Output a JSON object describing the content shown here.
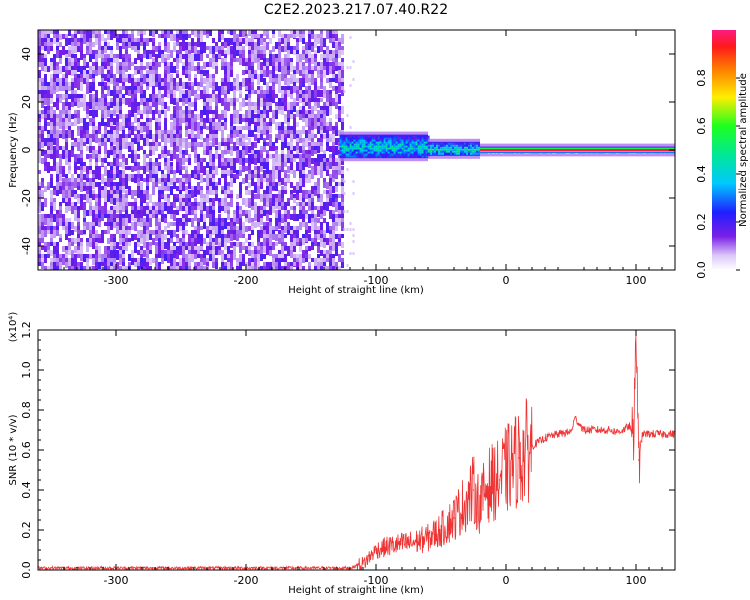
{
  "title": "C2E2.2023.217.07.40.R22",
  "chart_data": [
    {
      "type": "heatmap",
      "xlabel": "Height of straight line (km)",
      "ylabel": "Frequency (Hz)",
      "xlim": [
        -360,
        130
      ],
      "ylim": [
        -50,
        50
      ],
      "xticks": [
        -300,
        -200,
        -100,
        0,
        100
      ],
      "xtick_labels": [
        "-300",
        "-200",
        "-100",
        "0",
        "100"
      ],
      "yticks": [
        -40,
        -20,
        0,
        20,
        40
      ],
      "ytick_labels": [
        "-40",
        "-20",
        "0",
        "20",
        "40"
      ],
      "colorbar": {
        "label": "Normalized spectral amplitude",
        "range": [
          0.0,
          1.0
        ],
        "ticks": [
          0.0,
          0.2,
          0.4,
          0.6,
          0.8
        ],
        "tick_labels": [
          "0.0",
          "0.2",
          "0.4",
          "0.6",
          "0.8"
        ]
      },
      "regions": [
        {
          "x": [
            -360,
            -125
          ],
          "freq": [
            -50,
            50
          ],
          "amplitude": 0.15,
          "note": "broadband noise"
        },
        {
          "x": [
            -128,
            -60
          ],
          "freq": [
            -3,
            6
          ],
          "amplitude": 0.45
        },
        {
          "x": [
            -60,
            -20
          ],
          "freq": [
            -2,
            3
          ],
          "amplitude": 0.5
        },
        {
          "x": [
            -20,
            130
          ],
          "freq": [
            -1,
            1
          ],
          "amplitude": 0.95
        }
      ],
      "grid": false
    },
    {
      "type": "line",
      "xlabel": "Height of straight line (km)",
      "ylabel": "SNR (10 * v/v)",
      "y_multiplier": "(x10⁴)",
      "xlim": [
        -360,
        130
      ],
      "ylim": [
        0.0,
        1.2
      ],
      "xticks": [
        -300,
        -200,
        -100,
        0,
        100
      ],
      "xtick_labels": [
        "-300",
        "-200",
        "-100",
        "0",
        "100"
      ],
      "yticks": [
        0.0,
        0.2,
        0.4,
        0.6,
        0.8,
        1.0,
        1.2
      ],
      "ytick_labels": [
        "0.0",
        "0.2",
        "0.4",
        "0.6",
        "0.8",
        "1.0",
        "1.2"
      ],
      "series": [
        {
          "color": "#ee3333",
          "x": [
            -360,
            -300,
            -200,
            -120,
            -110,
            -100,
            -90,
            -80,
            -70,
            -60,
            -50,
            -40,
            -30,
            -25,
            -20,
            -15,
            -10,
            -5,
            0,
            10,
            20,
            30,
            40,
            50,
            53,
            60,
            70,
            80,
            85,
            90,
            95,
            98,
            100,
            102,
            105,
            110,
            120,
            130
          ],
          "y": [
            0.01,
            0.01,
            0.01,
            0.01,
            0.03,
            0.1,
            0.12,
            0.13,
            0.14,
            0.16,
            0.2,
            0.26,
            0.35,
            0.4,
            0.32,
            0.42,
            0.44,
            0.45,
            0.5,
            0.56,
            0.62,
            0.66,
            0.68,
            0.69,
            0.76,
            0.7,
            0.7,
            0.7,
            0.69,
            0.7,
            0.72,
            0.65,
            1.22,
            0.55,
            0.68,
            0.68,
            0.68,
            0.68
          ]
        }
      ],
      "grid": false
    }
  ]
}
